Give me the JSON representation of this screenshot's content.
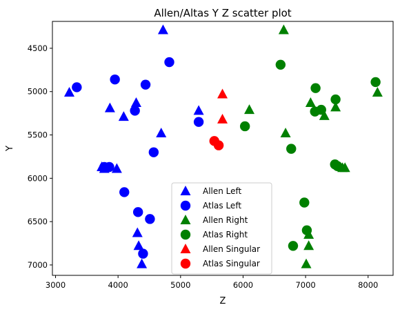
{
  "chart_data": {
    "type": "scatter",
    "title": "Allen/Altas Y Z scatter plot",
    "xlabel": "Z",
    "ylabel": "Y",
    "xlim": [
      2950,
      8400
    ],
    "ylim": [
      7120,
      4190
    ],
    "y_inverted": true,
    "xticks": [
      3000,
      4000,
      5000,
      6000,
      7000,
      8000
    ],
    "yticks": [
      4500,
      5000,
      5500,
      6000,
      6500,
      7000
    ],
    "grid": false,
    "legend_position": "lower-center",
    "series": [
      {
        "name": "Allen Left",
        "marker": "triangle",
        "color": "#0000ff",
        "points": [
          [
            3220,
            5010
          ],
          [
            3870,
            5190
          ],
          [
            4090,
            5290
          ],
          [
            4290,
            5130
          ],
          [
            4690,
            5480
          ],
          [
            4720,
            4290
          ],
          [
            5290,
            5220
          ],
          [
            3740,
            5870
          ],
          [
            3780,
            5890
          ],
          [
            3980,
            5890
          ],
          [
            4310,
            6630
          ],
          [
            4330,
            6780
          ],
          [
            4380,
            6990
          ]
        ]
      },
      {
        "name": "Atlas Left",
        "marker": "circle",
        "color": "#0000ff",
        "points": [
          [
            3340,
            4950
          ],
          [
            3950,
            4860
          ],
          [
            4270,
            5220
          ],
          [
            4440,
            4920
          ],
          [
            4820,
            4660
          ],
          [
            5290,
            5350
          ],
          [
            4570,
            5700
          ],
          [
            3780,
            5870
          ],
          [
            3860,
            5870
          ],
          [
            4100,
            6160
          ],
          [
            4320,
            6390
          ],
          [
            4400,
            6870
          ],
          [
            4510,
            6470
          ]
        ]
      },
      {
        "name": "Allen Right",
        "marker": "triangle",
        "color": "#008000",
        "points": [
          [
            6650,
            4290
          ],
          [
            6100,
            5210
          ],
          [
            6680,
            5480
          ],
          [
            7080,
            5130
          ],
          [
            7300,
            5280
          ],
          [
            7480,
            5180
          ],
          [
            8150,
            5010
          ],
          [
            7590,
            5880
          ],
          [
            7630,
            5880
          ],
          [
            7050,
            6650
          ],
          [
            7050,
            6780
          ],
          [
            7010,
            6990
          ]
        ]
      },
      {
        "name": "Atlas Right",
        "marker": "circle",
        "color": "#008000",
        "points": [
          [
            6600,
            4690
          ],
          [
            7160,
            4960
          ],
          [
            7150,
            5230
          ],
          [
            7250,
            5210
          ],
          [
            7480,
            5090
          ],
          [
            8120,
            4890
          ],
          [
            6030,
            5400
          ],
          [
            6770,
            5660
          ],
          [
            7470,
            5840
          ],
          [
            7510,
            5860
          ],
          [
            6980,
            6280
          ],
          [
            7020,
            6600
          ],
          [
            6800,
            6780
          ]
        ]
      },
      {
        "name": "Allen Singular",
        "marker": "triangle",
        "color": "#ff0000",
        "points": [
          [
            5670,
            5030
          ],
          [
            5670,
            5320
          ]
        ]
      },
      {
        "name": "Atlas Singular",
        "marker": "circle",
        "color": "#ff0000",
        "points": [
          [
            5540,
            5570
          ],
          [
            5610,
            5620
          ]
        ]
      }
    ]
  }
}
